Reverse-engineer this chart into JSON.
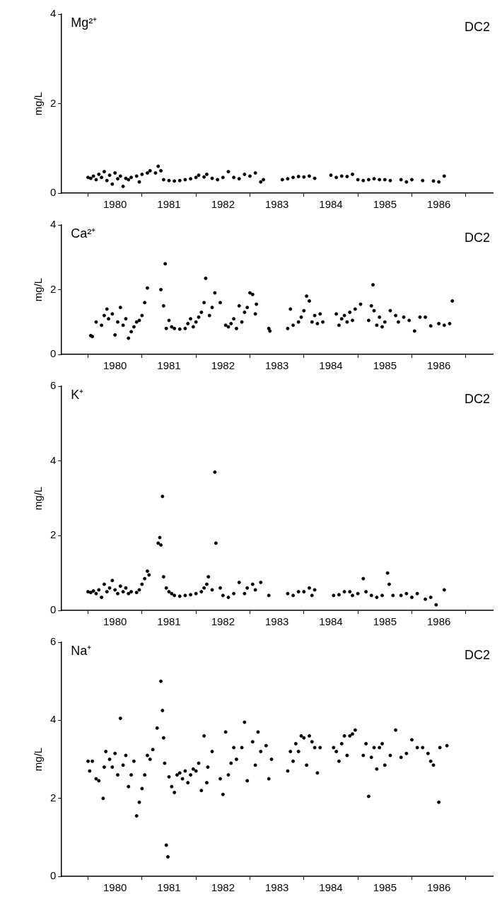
{
  "chart_data": [
    {
      "type": "scatter",
      "title": "Mg²⁺",
      "subtitle": "DC2",
      "ylabel": "mg/L",
      "color": "#000000",
      "marker": "circle",
      "xlim": [
        1979.5,
        1987.5
      ],
      "xticks": [
        {
          "value": 1980,
          "label": null
        },
        {
          "value": 1980.5,
          "label": "1980"
        },
        {
          "value": 1981,
          "label": null
        },
        {
          "value": 1981.5,
          "label": "1981"
        },
        {
          "value": 1982,
          "label": null
        },
        {
          "value": 1982.5,
          "label": "1982"
        },
        {
          "value": 1983,
          "label": null
        },
        {
          "value": 1983.5,
          "label": "1983"
        },
        {
          "value": 1984,
          "label": null
        },
        {
          "value": 1984.5,
          "label": "1984"
        },
        {
          "value": 1985,
          "label": null
        },
        {
          "value": 1985.5,
          "label": "1985"
        },
        {
          "value": 1986,
          "label": null
        },
        {
          "value": 1986.5,
          "label": "1986"
        },
        {
          "value": 1987,
          "label": null
        }
      ],
      "ylim": [
        0,
        4
      ],
      "yticks": [
        0,
        2,
        4
      ],
      "x": [
        1980.0,
        1980.05,
        1980.1,
        1980.15,
        1980.2,
        1980.25,
        1980.3,
        1980.35,
        1980.4,
        1980.45,
        1980.5,
        1980.55,
        1980.6,
        1980.65,
        1980.7,
        1980.75,
        1980.8,
        1980.9,
        1980.95,
        1981.0,
        1981.1,
        1981.15,
        1981.25,
        1981.3,
        1981.35,
        1981.4,
        1981.5,
        1981.6,
        1981.7,
        1981.8,
        1981.9,
        1982.0,
        1982.05,
        1982.15,
        1982.2,
        1982.3,
        1982.4,
        1982.5,
        1982.6,
        1982.7,
        1982.8,
        1982.9,
        1983.0,
        1983.1,
        1983.2,
        1983.25,
        1983.6,
        1983.7,
        1983.8,
        1983.9,
        1984.0,
        1984.1,
        1984.2,
        1984.5,
        1984.6,
        1984.7,
        1984.8,
        1984.9,
        1985.0,
        1985.1,
        1985.2,
        1985.3,
        1985.4,
        1985.5,
        1985.6,
        1985.8,
        1985.9,
        1986.0,
        1986.2,
        1986.4,
        1986.5,
        1986.6
      ],
      "values": [
        0.35,
        0.33,
        0.38,
        0.3,
        0.42,
        0.35,
        0.48,
        0.28,
        0.4,
        0.2,
        0.45,
        0.32,
        0.38,
        0.15,
        0.33,
        0.3,
        0.35,
        0.38,
        0.25,
        0.42,
        0.45,
        0.5,
        0.45,
        0.6,
        0.5,
        0.3,
        0.28,
        0.27,
        0.28,
        0.3,
        0.32,
        0.35,
        0.4,
        0.36,
        0.42,
        0.33,
        0.3,
        0.35,
        0.48,
        0.35,
        0.32,
        0.42,
        0.38,
        0.45,
        0.25,
        0.3,
        0.3,
        0.32,
        0.35,
        0.37,
        0.36,
        0.38,
        0.33,
        0.4,
        0.35,
        0.38,
        0.37,
        0.42,
        0.3,
        0.28,
        0.3,
        0.32,
        0.3,
        0.3,
        0.28,
        0.3,
        0.25,
        0.3,
        0.28,
        0.27,
        0.25,
        0.38
      ]
    },
    {
      "type": "scatter",
      "title": "Ca²⁺",
      "subtitle": "DC2",
      "ylabel": "mg/L",
      "color": "#000000",
      "marker": "circle",
      "xlim": [
        1979.5,
        1987.5
      ],
      "xticks": [
        {
          "value": 1980,
          "label": null
        },
        {
          "value": 1980.5,
          "label": "1980"
        },
        {
          "value": 1981,
          "label": null
        },
        {
          "value": 1981.5,
          "label": "1981"
        },
        {
          "value": 1982,
          "label": null
        },
        {
          "value": 1982.5,
          "label": "1982"
        },
        {
          "value": 1983,
          "label": null
        },
        {
          "value": 1983.5,
          "label": "1983"
        },
        {
          "value": 1984,
          "label": null
        },
        {
          "value": 1984.5,
          "label": "1984"
        },
        {
          "value": 1985,
          "label": null
        },
        {
          "value": 1985.5,
          "label": "1985"
        },
        {
          "value": 1986,
          "label": null
        },
        {
          "value": 1986.5,
          "label": "1986"
        },
        {
          "value": 1987,
          "label": null
        }
      ],
      "ylim": [
        0,
        4
      ],
      "yticks": [
        0,
        2,
        4
      ],
      "x": [
        1980.05,
        1980.08,
        1980.15,
        1980.25,
        1980.3,
        1980.35,
        1980.38,
        1980.45,
        1980.5,
        1980.55,
        1980.6,
        1980.65,
        1980.7,
        1980.75,
        1980.8,
        1980.85,
        1980.9,
        1980.95,
        1981.0,
        1981.05,
        1981.1,
        1981.35,
        1981.4,
        1981.43,
        1981.45,
        1981.5,
        1981.55,
        1981.6,
        1981.7,
        1981.8,
        1981.85,
        1981.9,
        1981.95,
        1982.0,
        1982.05,
        1982.1,
        1982.15,
        1982.18,
        1982.25,
        1982.3,
        1982.35,
        1982.45,
        1982.55,
        1982.6,
        1982.65,
        1982.7,
        1982.75,
        1982.8,
        1982.85,
        1982.9,
        1982.95,
        1983.0,
        1983.05,
        1983.1,
        1983.12,
        1983.35,
        1983.37,
        1983.7,
        1983.75,
        1983.8,
        1983.9,
        1983.95,
        1984.0,
        1984.05,
        1984.1,
        1984.15,
        1984.2,
        1984.25,
        1984.3,
        1984.35,
        1984.6,
        1984.65,
        1984.7,
        1984.75,
        1984.8,
        1984.85,
        1984.9,
        1984.95,
        1985.05,
        1985.2,
        1985.25,
        1985.28,
        1985.3,
        1985.35,
        1985.4,
        1985.45,
        1985.5,
        1985.6,
        1985.7,
        1985.75,
        1985.85,
        1985.95,
        1986.05,
        1986.15,
        1986.25,
        1986.35,
        1986.5,
        1986.6,
        1986.7,
        1986.75
      ],
      "values": [
        0.58,
        0.55,
        1.0,
        0.9,
        1.2,
        1.4,
        1.1,
        1.25,
        0.6,
        1.0,
        1.45,
        0.9,
        1.1,
        0.5,
        0.7,
        0.85,
        1.0,
        1.05,
        1.2,
        1.6,
        2.05,
        2.0,
        1.5,
        2.8,
        0.8,
        1.05,
        0.85,
        0.8,
        0.78,
        0.8,
        0.95,
        1.1,
        0.85,
        1.0,
        1.15,
        1.3,
        1.6,
        2.35,
        1.2,
        1.45,
        1.9,
        1.6,
        0.9,
        0.85,
        0.95,
        1.1,
        0.8,
        1.5,
        1.0,
        1.3,
        1.45,
        1.9,
        1.85,
        1.25,
        1.55,
        0.8,
        0.72,
        0.8,
        1.4,
        0.9,
        1.0,
        1.15,
        1.35,
        1.8,
        1.65,
        1.0,
        1.2,
        0.95,
        1.25,
        1.0,
        1.25,
        0.9,
        1.1,
        1.2,
        1.0,
        1.3,
        1.05,
        1.4,
        1.55,
        1.05,
        1.5,
        2.15,
        1.35,
        0.9,
        1.15,
        0.85,
        1.0,
        1.35,
        1.2,
        1.0,
        1.15,
        1.05,
        0.72,
        1.15,
        1.15,
        0.88,
        0.95,
        0.9,
        0.95,
        1.65
      ]
    },
    {
      "type": "scatter",
      "title": "K⁺",
      "subtitle": "DC2",
      "ylabel": "mg/L",
      "color": "#000000",
      "marker": "circle",
      "xlim": [
        1979.5,
        1987.5
      ],
      "xticks": [
        {
          "value": 1980,
          "label": null
        },
        {
          "value": 1980.5,
          "label": "1980"
        },
        {
          "value": 1981,
          "label": null
        },
        {
          "value": 1981.5,
          "label": "1981"
        },
        {
          "value": 1982,
          "label": null
        },
        {
          "value": 1982.5,
          "label": "1982"
        },
        {
          "value": 1983,
          "label": null
        },
        {
          "value": 1983.5,
          "label": "1983"
        },
        {
          "value": 1984,
          "label": null
        },
        {
          "value": 1984.5,
          "label": "1984"
        },
        {
          "value": 1985,
          "label": null
        },
        {
          "value": 1985.5,
          "label": "1985"
        },
        {
          "value": 1986,
          "label": null
        },
        {
          "value": 1986.5,
          "label": "1986"
        },
        {
          "value": 1987,
          "label": null
        }
      ],
      "ylim": [
        0,
        6
      ],
      "yticks": [
        0,
        2,
        4,
        6
      ],
      "x": [
        1980.0,
        1980.05,
        1980.1,
        1980.15,
        1980.2,
        1980.25,
        1980.3,
        1980.35,
        1980.4,
        1980.45,
        1980.5,
        1980.55,
        1980.6,
        1980.65,
        1980.7,
        1980.75,
        1980.8,
        1980.9,
        1980.95,
        1981.0,
        1981.05,
        1981.1,
        1981.13,
        1981.3,
        1981.33,
        1981.35,
        1981.38,
        1981.4,
        1981.45,
        1981.5,
        1981.55,
        1981.6,
        1981.7,
        1981.8,
        1981.9,
        1982.0,
        1982.1,
        1982.15,
        1982.2,
        1982.23,
        1982.3,
        1982.35,
        1982.37,
        1982.45,
        1982.5,
        1982.6,
        1982.7,
        1982.8,
        1982.9,
        1982.95,
        1983.05,
        1983.1,
        1983.2,
        1983.35,
        1983.7,
        1983.8,
        1983.9,
        1984.0,
        1984.1,
        1984.15,
        1984.2,
        1984.55,
        1984.65,
        1984.75,
        1984.85,
        1984.9,
        1985.0,
        1985.1,
        1985.15,
        1985.25,
        1985.35,
        1985.45,
        1985.55,
        1985.58,
        1985.65,
        1985.8,
        1985.9,
        1986.0,
        1986.1,
        1986.25,
        1986.35,
        1986.45,
        1986.6
      ],
      "values": [
        0.5,
        0.48,
        0.52,
        0.45,
        0.55,
        0.35,
        0.7,
        0.5,
        0.6,
        0.8,
        0.55,
        0.45,
        0.65,
        0.5,
        0.6,
        0.45,
        0.5,
        0.48,
        0.55,
        0.7,
        0.85,
        1.05,
        0.95,
        1.8,
        1.95,
        1.75,
        3.05,
        0.9,
        0.6,
        0.5,
        0.45,
        0.4,
        0.38,
        0.4,
        0.42,
        0.45,
        0.5,
        0.6,
        0.7,
        0.9,
        0.55,
        3.7,
        1.8,
        0.6,
        0.4,
        0.35,
        0.45,
        0.75,
        0.45,
        0.6,
        0.7,
        0.55,
        0.75,
        0.4,
        0.45,
        0.4,
        0.5,
        0.5,
        0.6,
        0.4,
        0.55,
        0.4,
        0.42,
        0.5,
        0.5,
        0.4,
        0.45,
        0.85,
        0.5,
        0.4,
        0.35,
        0.4,
        1.0,
        0.7,
        0.4,
        0.4,
        0.45,
        0.35,
        0.45,
        0.3,
        0.35,
        0.15,
        0.55
      ]
    },
    {
      "type": "scatter",
      "title": "Na⁺",
      "subtitle": "DC2",
      "ylabel": "mg/L",
      "color": "#000000",
      "marker": "circle",
      "xlim": [
        1979.5,
        1987.5
      ],
      "xticks": [
        {
          "value": 1980,
          "label": null
        },
        {
          "value": 1980.5,
          "label": "1980"
        },
        {
          "value": 1981,
          "label": null
        },
        {
          "value": 1981.5,
          "label": "1981"
        },
        {
          "value": 1982,
          "label": null
        },
        {
          "value": 1982.5,
          "label": "1982"
        },
        {
          "value": 1983,
          "label": null
        },
        {
          "value": 1983.5,
          "label": "1983"
        },
        {
          "value": 1984,
          "label": null
        },
        {
          "value": 1984.5,
          "label": "1984"
        },
        {
          "value": 1985,
          "label": null
        },
        {
          "value": 1985.5,
          "label": "1985"
        },
        {
          "value": 1986,
          "label": null
        },
        {
          "value": 1986.5,
          "label": "1986"
        },
        {
          "value": 1987,
          "label": null
        }
      ],
      "ylim": [
        0,
        6
      ],
      "yticks": [
        0,
        2,
        4,
        6
      ],
      "x": [
        1980.0,
        1980.03,
        1980.08,
        1980.15,
        1980.2,
        1980.28,
        1980.3,
        1980.33,
        1980.4,
        1980.45,
        1980.5,
        1980.55,
        1980.6,
        1980.65,
        1980.7,
        1980.75,
        1980.8,
        1980.85,
        1980.9,
        1980.95,
        1981.0,
        1981.05,
        1981.1,
        1981.15,
        1981.2,
        1981.28,
        1981.35,
        1981.38,
        1981.4,
        1981.42,
        1981.45,
        1981.48,
        1981.5,
        1981.55,
        1981.6,
        1981.65,
        1981.7,
        1981.75,
        1981.8,
        1981.85,
        1981.9,
        1981.95,
        1982.0,
        1982.05,
        1982.1,
        1982.15,
        1982.2,
        1982.22,
        1982.3,
        1982.45,
        1982.5,
        1982.55,
        1982.6,
        1982.65,
        1982.7,
        1982.75,
        1982.85,
        1982.9,
        1982.95,
        1983.05,
        1983.1,
        1983.15,
        1983.2,
        1983.3,
        1983.35,
        1983.4,
        1983.7,
        1983.75,
        1983.8,
        1983.85,
        1983.9,
        1983.95,
        1984.0,
        1984.05,
        1984.1,
        1984.15,
        1984.2,
        1984.25,
        1984.3,
        1984.55,
        1984.6,
        1984.65,
        1984.7,
        1984.75,
        1984.8,
        1984.85,
        1984.9,
        1984.95,
        1985.1,
        1985.15,
        1985.2,
        1985.25,
        1985.3,
        1985.35,
        1985.4,
        1985.45,
        1985.5,
        1985.6,
        1985.7,
        1985.8,
        1985.9,
        1986.0,
        1986.1,
        1986.2,
        1986.3,
        1986.35,
        1986.4,
        1986.5,
        1986.52,
        1986.65
      ],
      "values": [
        2.95,
        2.7,
        2.95,
        2.5,
        2.45,
        2.0,
        2.8,
        3.2,
        3.0,
        2.8,
        3.15,
        2.6,
        4.05,
        2.85,
        3.1,
        2.3,
        2.6,
        2.95,
        1.55,
        1.9,
        2.25,
        2.6,
        3.1,
        3.0,
        3.25,
        3.8,
        5.0,
        4.25,
        3.55,
        2.9,
        0.8,
        0.5,
        2.55,
        2.3,
        2.15,
        2.6,
        2.65,
        2.5,
        2.7,
        2.4,
        2.6,
        2.75,
        2.7,
        2.9,
        2.2,
        3.6,
        2.4,
        2.8,
        3.2,
        2.5,
        2.1,
        3.7,
        2.6,
        2.9,
        3.3,
        3.0,
        3.3,
        3.95,
        2.45,
        3.45,
        2.85,
        3.7,
        3.2,
        3.35,
        2.5,
        3.0,
        2.7,
        3.2,
        2.95,
        3.4,
        3.2,
        3.6,
        3.55,
        2.85,
        3.6,
        3.45,
        3.3,
        2.65,
        3.3,
        3.3,
        3.2,
        2.95,
        3.4,
        3.6,
        3.1,
        3.6,
        3.65,
        3.75,
        3.1,
        3.4,
        2.05,
        3.05,
        3.3,
        2.75,
        3.3,
        3.4,
        2.85,
        3.1,
        3.75,
        3.05,
        3.15,
        3.5,
        3.3,
        3.3,
        3.15,
        2.95,
        2.85,
        1.9,
        3.3,
        3.35
      ]
    }
  ]
}
